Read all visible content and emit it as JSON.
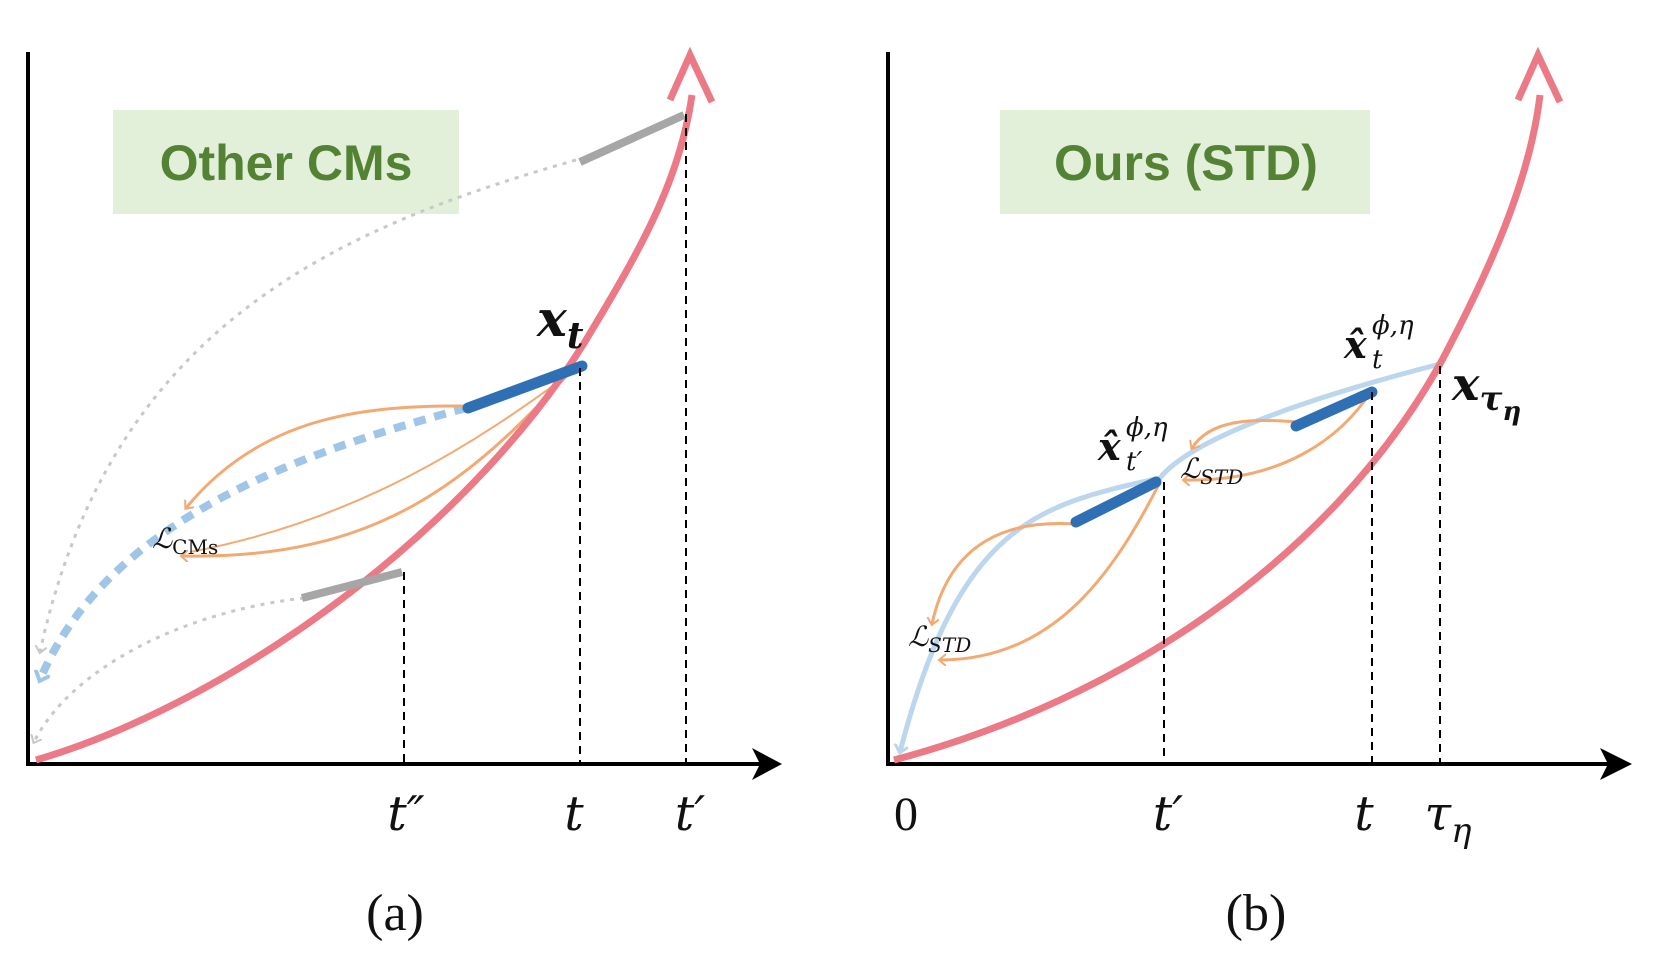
{
  "colors": {
    "trajectory": "#ec7a86",
    "segment": "#2f6fb3",
    "light_path": "#bcd6ee",
    "dashed_path": "#9fc5e8",
    "loss_arrow": "#f2aa72",
    "gray_segment": "#a6a6a6",
    "dotted_gray": "#c8c8c8",
    "label_box_bg": "#e2f0d9",
    "label_text": "#548235",
    "axis": "#000000"
  },
  "panel_a": {
    "title": "Other CMs",
    "caption": "(a)",
    "point_label": "x",
    "point_sub": "t",
    "loss_label": "ℒ",
    "loss_sub": "CMs",
    "ticks": [
      "t″",
      "t",
      "t′"
    ]
  },
  "panel_b": {
    "title": "Ours (STD)",
    "caption": "(b)",
    "end_label": "x",
    "end_sub": "τ",
    "end_subsub": "η",
    "est_t_label": "x̂",
    "est_t_sub": "t",
    "est_t_sup": "ϕ,η",
    "est_tp_label": "x̂",
    "est_tp_sub": "t′",
    "est_tp_sup": "ϕ,η",
    "loss_label": "ℒ",
    "loss_sub": "STD",
    "ticks": [
      "0",
      "t′",
      "t",
      "τ"
    ],
    "tick_tau_sub": "η"
  }
}
